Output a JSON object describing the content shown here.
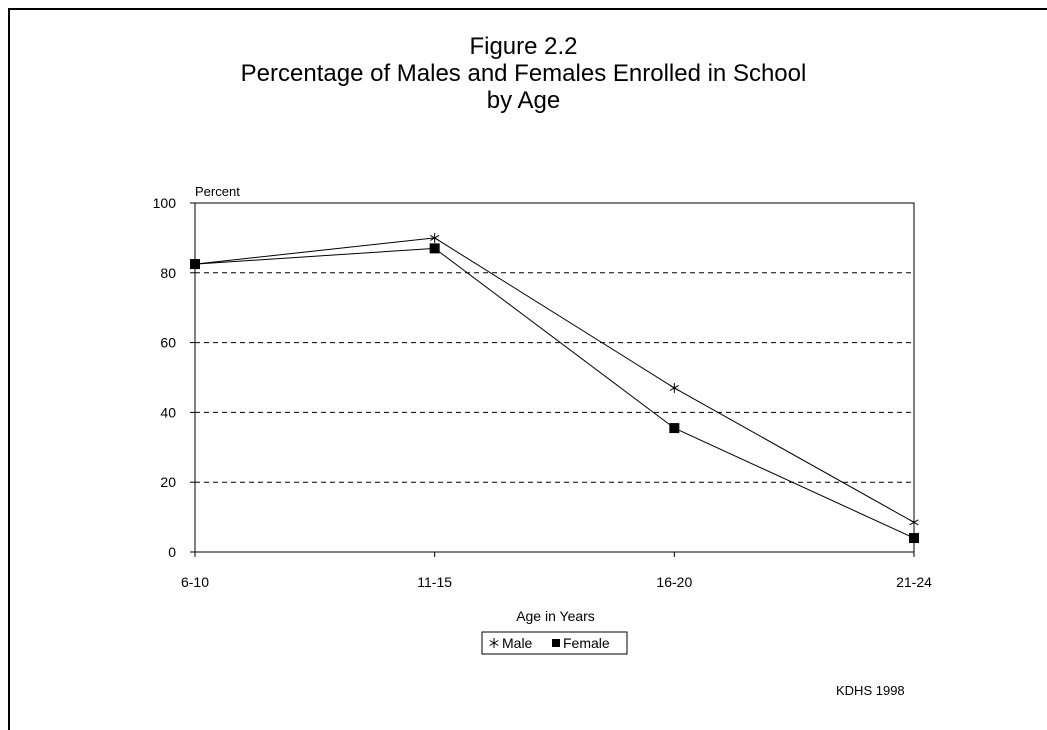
{
  "chart_data": {
    "type": "line",
    "title": "Figure 2.2",
    "subtitle": [
      "Percentage of Males and Females Enrolled in School",
      "by Age"
    ],
    "xlabel": "Age in Years",
    "ylabel": "Percent",
    "categories": [
      "6-10",
      "11-15",
      "16-20",
      "21-24"
    ],
    "ylim": [
      0,
      100
    ],
    "yticks": [
      0,
      20,
      40,
      60,
      80,
      100
    ],
    "grid": "horizontal dashed",
    "legend": "bottom-center",
    "series": [
      {
        "name": "Male",
        "marker": "star",
        "values": [
          82.5,
          90,
          47,
          8.5
        ]
      },
      {
        "name": "Female",
        "marker": "square",
        "values": [
          82.5,
          87,
          35.5,
          4
        ]
      }
    ]
  },
  "source": "KDHS 1998"
}
